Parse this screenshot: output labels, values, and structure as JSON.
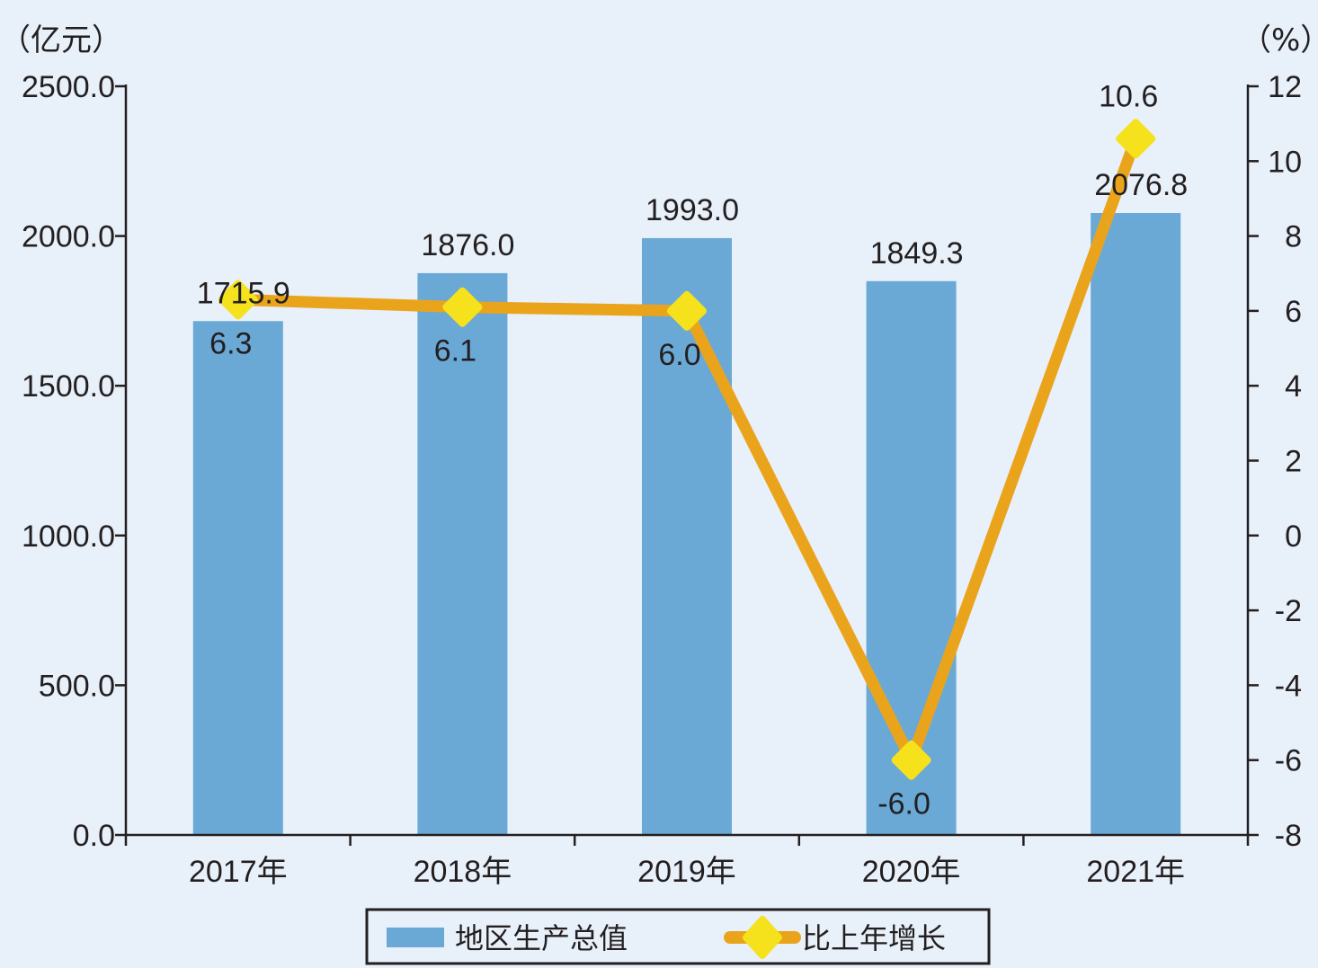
{
  "chart_data": {
    "type": "bar",
    "categories": [
      "2017年",
      "2018年",
      "2019年",
      "2020年",
      "2021年"
    ],
    "series": [
      {
        "name": "地区生产总值",
        "type": "bar",
        "axis": "left",
        "color": "#6aa9d6",
        "values": [
          1715.9,
          1876.0,
          1993.0,
          1849.3,
          2076.8
        ],
        "labels": [
          "1715.9",
          "1876.0",
          "1993.0",
          "1849.3",
          "2076.8"
        ]
      },
      {
        "name": "比上年增长",
        "type": "line",
        "axis": "right",
        "color": "#e9a41c",
        "marker_color": "#f5e21c",
        "values": [
          6.3,
          6.1,
          6.0,
          -6.0,
          10.6
        ],
        "labels": [
          "6.3",
          "6.1",
          "6.0",
          "-6.0",
          "10.6"
        ]
      }
    ],
    "y_left": {
      "unit": "（亿元）",
      "range": [
        0,
        2500
      ],
      "ticks": [
        "0.0",
        "500.0",
        "1000.0",
        "1500.0",
        "2000.0",
        "2500.0"
      ]
    },
    "y_right": {
      "unit": "（%）",
      "range": [
        -8,
        12
      ],
      "ticks": [
        "-8",
        "-6",
        "-4",
        "-2",
        "0",
        "2",
        "4",
        "6",
        "8",
        "10",
        "12"
      ]
    },
    "legend": "bottom-center",
    "grid": false
  }
}
